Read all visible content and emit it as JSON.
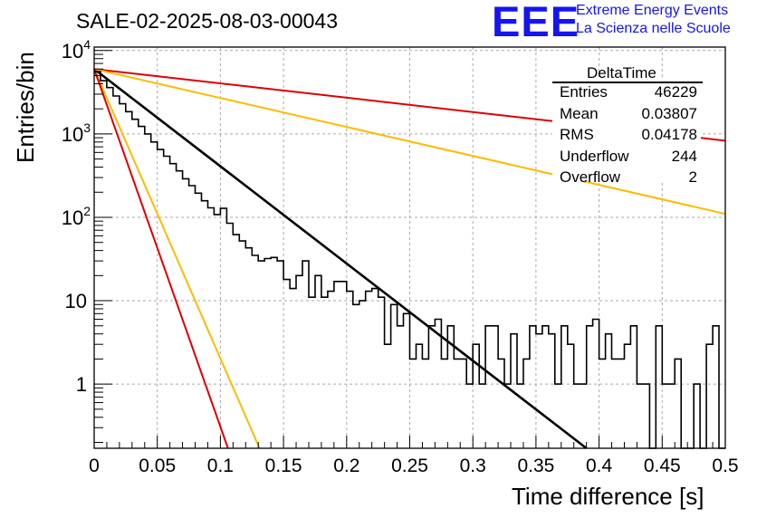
{
  "header": {
    "title": "SALE-02-2025-08-03-00043",
    "logo_text": "EEE",
    "logo_line1": "Extreme Energy Events",
    "logo_line2": "La Scienza nelle Scuole"
  },
  "stats_box": {
    "name": "DeltaTime",
    "rows": [
      {
        "label": "Entries",
        "value": "46229"
      },
      {
        "label": "Mean",
        "value": "0.03807"
      },
      {
        "label": "RMS",
        "value": "0.04178"
      },
      {
        "label": "Underflow",
        "value": "244"
      },
      {
        "label": "Overflow",
        "value": "2"
      }
    ]
  },
  "colors": {
    "histogram": "#000000",
    "fit": "#000000",
    "red": "#dd0000",
    "orange": "#ffbb00",
    "grid": "#aaaaaa"
  },
  "chart_data": {
    "type": "line",
    "title": "SALE-02-2025-08-03-00043",
    "xlabel": "Time difference [s]",
    "ylabel": "Entries/bin",
    "xlim": [
      0,
      0.5
    ],
    "ylim": [
      0.17,
      11000
    ],
    "yscale": "log",
    "grid": true,
    "x_ticks": [
      0,
      0.05,
      0.1,
      0.15,
      0.2,
      0.25,
      0.3,
      0.35,
      0.4,
      0.45,
      0.5
    ],
    "x_tick_labels": [
      "0",
      "0.05",
      "0.1",
      "0.15",
      "0.2",
      "0.25",
      "0.3",
      "0.35",
      "0.4",
      "0.45",
      "0.5"
    ],
    "y_ticks": [
      1,
      10,
      100,
      1000,
      10000
    ],
    "y_tick_labels": [
      "1",
      "10",
      "10^2",
      "10^3",
      "10^4"
    ],
    "histogram": {
      "bin_width": 0.005,
      "counts": [
        5600,
        4350,
        3600,
        2850,
        2300,
        1850,
        1500,
        1230,
        1000,
        800,
        650,
        540,
        440,
        360,
        290,
        240,
        195,
        158,
        130,
        108,
        128,
        85,
        62,
        52,
        43,
        35,
        30,
        32,
        33,
        30,
        18,
        14,
        20,
        30,
        11,
        20,
        11,
        13,
        17,
        17,
        13,
        9,
        10,
        13,
        14,
        11,
        3,
        9,
        5,
        7,
        2,
        3,
        2,
        5,
        6,
        2,
        5,
        2,
        2,
        1,
        3,
        1,
        5,
        5,
        2,
        1,
        4,
        1,
        2,
        5,
        4,
        5,
        4,
        1,
        5,
        3,
        1,
        1,
        5,
        6,
        2,
        4,
        2,
        2,
        3,
        5,
        1,
        1,
        0,
        5,
        1,
        1,
        2,
        0,
        0,
        1,
        0,
        3,
        5,
        0
      ]
    },
    "series": [
      {
        "type": "exponential",
        "color": "black",
        "x": [
          0,
          0.39
        ],
        "y": [
          6000,
          0.17
        ]
      },
      {
        "type": "exponential",
        "color": "red",
        "x": [
          0,
          0.5
        ],
        "y": [
          6000,
          830
        ]
      },
      {
        "type": "exponential",
        "color": "orange",
        "x": [
          0,
          0.5
        ],
        "y": [
          6000,
          110
        ]
      },
      {
        "type": "exponential",
        "color": "orange",
        "x": [
          0,
          0.131
        ],
        "y": [
          6000,
          0.17
        ]
      },
      {
        "type": "exponential",
        "color": "red",
        "x": [
          0,
          0.106
        ],
        "y": [
          6000,
          0.17
        ]
      }
    ]
  }
}
